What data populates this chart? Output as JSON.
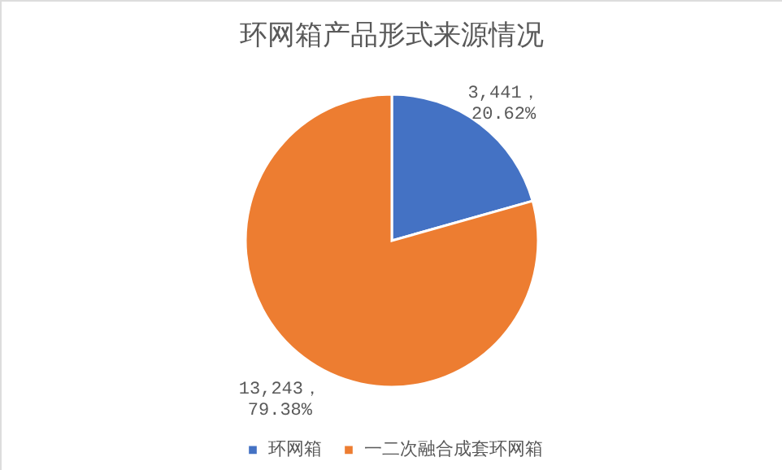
{
  "chart_data": {
    "type": "pie",
    "title": "环网箱产品形式来源情况",
    "categories": [
      "环网箱",
      "一二次融合成套环网箱"
    ],
    "values": [
      3441,
      13243
    ],
    "colors": [
      "#4472c4",
      "#ed7d31"
    ],
    "value_labels": [
      "3,441，\n20.62%",
      "13,243，\n79.38%"
    ],
    "legend": "bottom"
  }
}
